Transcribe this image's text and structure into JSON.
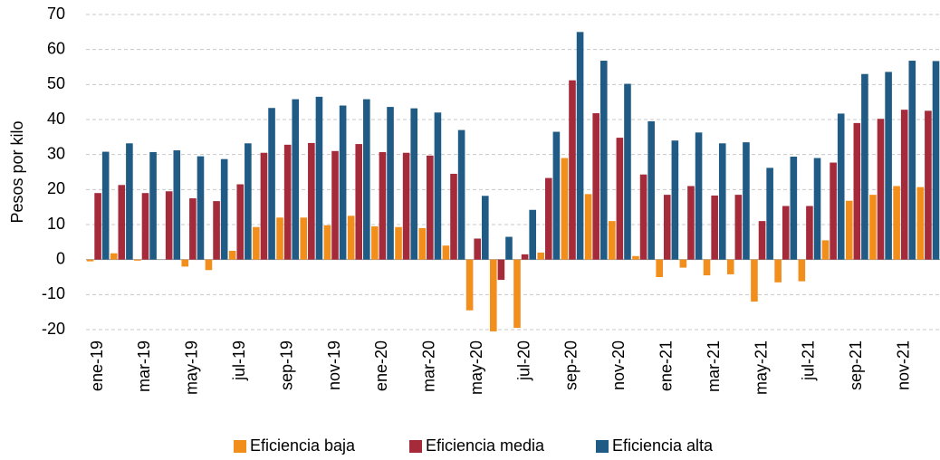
{
  "chart_data": {
    "type": "bar",
    "y_label": "Pesos por kilo",
    "categories": [
      "ene-19",
      null,
      "mar-19",
      null,
      "may-19",
      null,
      "jul-19",
      null,
      "sep-19",
      null,
      "nov-19",
      null,
      "ene-20",
      null,
      "mar-20",
      null,
      "may-20",
      null,
      "jul-20",
      null,
      "sep-20",
      null,
      "nov-20",
      null,
      "ene-21",
      null,
      "mar-21",
      null,
      "may-21",
      null,
      "jul-21",
      null,
      "sep-21",
      null,
      "nov-21",
      null
    ],
    "series": [
      {
        "name": "Eficiencia baja",
        "color": "#f28e1c",
        "values": [
          -0.5,
          1.8,
          -0.3,
          0,
          -2,
          -3,
          2.5,
          9.3,
          12,
          12,
          9.8,
          12.5,
          9.5,
          9.3,
          9,
          4,
          -14.5,
          -20.5,
          -19.5,
          2,
          29,
          18.7,
          11,
          1,
          -5,
          -2.3,
          -4.5,
          -4.2,
          -12,
          -6.5,
          -6.2,
          5.5,
          16.8,
          18.5,
          21,
          20.7
        ]
      },
      {
        "name": "Eficiencia media",
        "color": "#a52a3a",
        "values": [
          19,
          21.3,
          19,
          19.5,
          17.5,
          16.7,
          21.5,
          30.5,
          32.8,
          33.3,
          31,
          33,
          30.7,
          30.5,
          29.7,
          24.5,
          6,
          -5.8,
          1.5,
          23.3,
          51.2,
          41.8,
          34.8,
          24.3,
          18.5,
          21,
          18.3,
          18.5,
          11,
          15.3,
          15.3,
          27.7,
          39,
          40.2,
          42.8,
          42.5
        ]
      },
      {
        "name": "Eficiencia alta",
        "color": "#1f5b84",
        "values": [
          30.8,
          33.2,
          30.7,
          31.2,
          29.5,
          28.7,
          33.2,
          43.3,
          45.8,
          46.5,
          44,
          45.8,
          43.6,
          43.2,
          42,
          37,
          18.2,
          6.5,
          14.2,
          36.5,
          65,
          56.8,
          50.2,
          39.5,
          34,
          36.3,
          33.2,
          33.5,
          26.2,
          29.4,
          29,
          41.7,
          53,
          53.6,
          56.8,
          56.7
        ]
      }
    ],
    "ylim": [
      -20,
      70
    ],
    "yticks": [
      -20,
      -10,
      0,
      10,
      20,
      30,
      40,
      50,
      60,
      70
    ],
    "grid": true,
    "legend": "bottom"
  }
}
